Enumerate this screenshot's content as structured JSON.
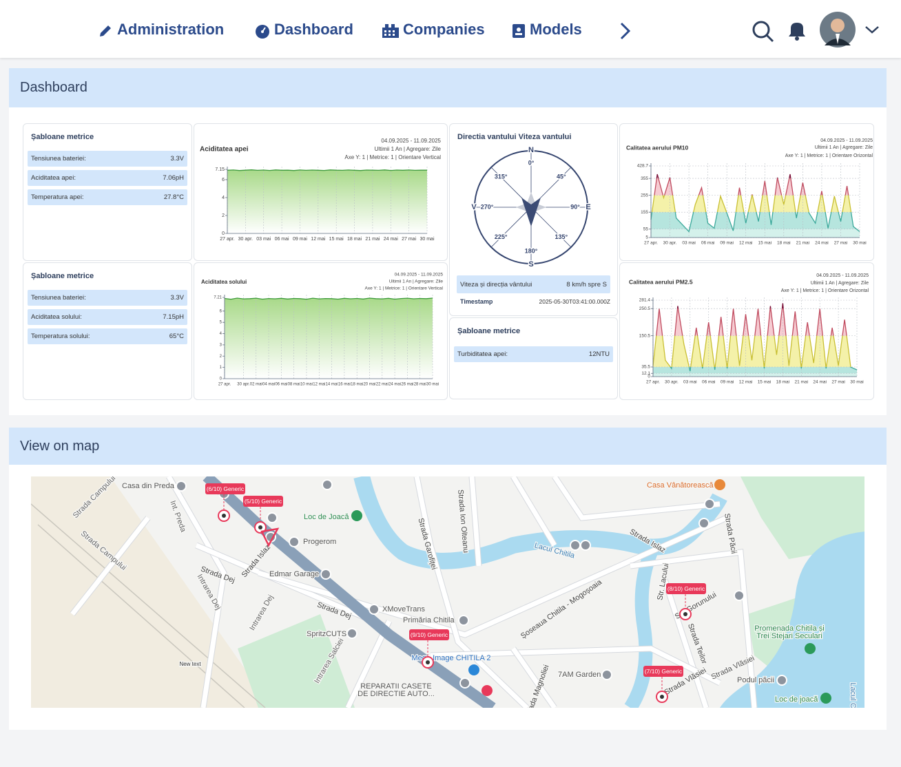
{
  "nav": {
    "items": [
      "Administration",
      "Dashboard",
      "Companies",
      "Models"
    ]
  },
  "sections": {
    "dashboard": "Dashboard",
    "map": "View on map"
  },
  "cards": [
    {
      "title": "Șabloane metrice",
      "rows": [
        {
          "label": "Tensiunea bateriei:",
          "value": "3.3V"
        },
        {
          "label": "Aciditatea apei:",
          "value": "7.06pH"
        },
        {
          "label": "Temperatura apei:",
          "value": "27.8°C"
        }
      ]
    },
    {
      "title": "Șabloane metrice",
      "rows": [
        {
          "label": "Tensiunea bateriei:",
          "value": "3.3V"
        },
        {
          "label": "Aciditatea solului:",
          "value": "7.15pH"
        },
        {
          "label": "Temperatura solului:",
          "value": "65°C"
        }
      ]
    },
    {
      "title": "Șabloane metrice",
      "rows": [
        {
          "label": "Turbiditatea apei:",
          "value": "12NTU"
        }
      ]
    }
  ],
  "wind": {
    "title": "Directia vantului Viteza vantului",
    "cardinals": [
      "N",
      "E",
      "S",
      "V"
    ],
    "degrees": [
      "0°",
      "45°",
      "90°",
      "135°",
      "180°",
      "225°",
      "270°",
      "315°"
    ],
    "rows": [
      {
        "label": "Viteza și direcția vântului",
        "value": "8 km/h spre S"
      },
      {
        "label": "Timestamp",
        "value": "2025-05-30T03:41:00.000Z"
      }
    ]
  },
  "chart_data": [
    {
      "type": "line",
      "title": "Aciditatea apei",
      "meta": [
        "04.09.2025 - 11.09.2025",
        "Ultimii 1 An | Agregare: Zile",
        "Axe Y: 1 | Metrice: 1 | Orientare Vertical"
      ],
      "categories": [
        "27 apr.",
        null,
        null,
        "30 apr.",
        null,
        null,
        "03 mai",
        null,
        null,
        "06 mai",
        null,
        null,
        "09 mai",
        null,
        null,
        "12 mai",
        null,
        null,
        "15 mai",
        null,
        null,
        "18 mai",
        null,
        null,
        "21 mai",
        null,
        null,
        "24 mai",
        null,
        null,
        "27 mai",
        null,
        null,
        "30 mai"
      ],
      "series": [
        {
          "name": "Aciditatea apei",
          "color": "#3c9a3a",
          "values": [
            7.05,
            7.08,
            7.02,
            7.06,
            7.1,
            7.04,
            7.07,
            7.03,
            7.09,
            7.05,
            7.06,
            7.02,
            7.08,
            7.04,
            7.07,
            7.05,
            7.03,
            7.09,
            7.06,
            7.04,
            7.08,
            7.05,
            7.02,
            7.07,
            7.06,
            7.04,
            7.09,
            7.03,
            7.07,
            7.05,
            7.08,
            7.04,
            7.06,
            7.06
          ]
        }
      ],
      "ylim": [
        0,
        7.15
      ],
      "yticks": [
        0,
        2,
        4,
        6,
        7.15
      ],
      "grid": true
    },
    {
      "type": "line",
      "title": "Aciditatea solului",
      "meta": [
        "04.09.2025 - 11.09.2025",
        "Ultimii 1 An | Agregare: Zile",
        "Axe Y: 1 | Metrice: 1 | Orientare Vertical"
      ],
      "categories": [
        "27 apr.",
        null,
        null,
        "30 apr.",
        null,
        "02 mai",
        null,
        "04 mai",
        null,
        "06 mai",
        null,
        "08 mai",
        null,
        "10 mai",
        null,
        "12 mai",
        null,
        "14 mai",
        null,
        "16 mai",
        null,
        "18 mai",
        null,
        "20 mai",
        null,
        "22 mai",
        null,
        "24 mai",
        null,
        "26 mai",
        null,
        "28 mai",
        null,
        "30 mai"
      ],
      "series": [
        {
          "name": "Aciditatea solului",
          "color": "#3c9a3a",
          "values": [
            7.12,
            7.05,
            7.15,
            7.08,
            7.1,
            7.14,
            7.06,
            7.11,
            7.09,
            7.13,
            7.07,
            7.12,
            7.1,
            7.05,
            7.14,
            7.08,
            7.11,
            7.1,
            7.06,
            7.13,
            7.09,
            7.12,
            7.07,
            7.15,
            7.1,
            7.08,
            7.13,
            7.06,
            7.11,
            7.14,
            7.09,
            7.12,
            7.1,
            7.15
          ]
        }
      ],
      "ylim": [
        0,
        7.21
      ],
      "yticks": [
        0,
        1,
        2,
        3,
        4,
        5,
        6,
        7.21
      ],
      "grid": true
    },
    {
      "type": "line",
      "title": "Calitatea aerului PM10",
      "meta": [
        "04.09.2025 - 11.09.2025",
        "Ultimii 1 An | Agregare: Zile",
        "Axe Y: 1 | Metrice: 1 | Orientare Orizontal"
      ],
      "categories": [
        "27 apr.",
        null,
        null,
        "30 apr.",
        null,
        null,
        "03 mai",
        null,
        null,
        "06 mai",
        null,
        null,
        "09 mai",
        null,
        null,
        "12 mai",
        null,
        null,
        "15 mai",
        null,
        null,
        "18 mai",
        null,
        null,
        "21 mai",
        null,
        null,
        "24 mai",
        null,
        null,
        "27 mai",
        null,
        null,
        "30 mai"
      ],
      "series": [
        {
          "name": "Calitatea aerului PM10",
          "color": "#8b1a3a",
          "values": [
            110,
            380,
            240,
            360,
            120,
            80,
            40,
            200,
            300,
            90,
            60,
            250,
            150,
            45,
            300,
            90,
            260,
            100,
            340,
            80,
            360,
            200,
            380,
            120,
            330,
            150,
            90,
            280,
            60,
            250,
            100,
            310,
            70,
            40
          ]
        }
      ],
      "ylim": [
        5,
        428.7
      ],
      "yticks": [
        5,
        55,
        155,
        255,
        355,
        428.7
      ],
      "grid": true,
      "bands": true
    },
    {
      "type": "line",
      "title": "Calitatea aerului PM2.5",
      "meta": [
        "04.09.2025 - 11.09.2025",
        "Ultimii 1 An | Agregare: Zile",
        "Axe Y: 1 | Metrice: 1 | Orientare Orizontal"
      ],
      "categories": [
        "27 apr.",
        null,
        null,
        "30 apr.",
        null,
        null,
        "03 mai",
        null,
        null,
        "06 mai",
        null,
        null,
        "09 mai",
        null,
        null,
        "12 mai",
        null,
        null,
        "15 mai",
        null,
        null,
        "18 mai",
        null,
        null,
        "21 mai",
        null,
        null,
        "24 mai",
        null,
        null,
        "27 mai",
        null,
        null,
        "30 mai"
      ],
      "series": [
        {
          "name": "Calitatea aerului PM2.5",
          "color": "#7a1038",
          "values": [
            40,
            250,
            60,
            30,
            260,
            120,
            20,
            180,
            30,
            200,
            25,
            220,
            30,
            250,
            40,
            230,
            60,
            250,
            30,
            260,
            80,
            270,
            40,
            240,
            30,
            200,
            50,
            250,
            30,
            180,
            40,
            210,
            35,
            25
          ]
        }
      ],
      "ylim": [
        0,
        281.4
      ],
      "yticks": [
        0,
        12.1,
        35.5,
        150.5,
        250.5,
        281.4
      ],
      "grid": true,
      "bands": true
    }
  ],
  "map": {
    "labels": [
      "Casa din Preda",
      "Strada Campului",
      "Int. Preda",
      "Strada Campului",
      "Loc de Joacă",
      "Progerom",
      "Strada Islaz",
      "Edmar Garage",
      "Strada Dej",
      "Intrarea Dej",
      "Intrarea Dej",
      "Strada Dej",
      "XMoveTrans",
      "Primăria Chitila",
      "SpritzCUTS",
      "Intrarea Salciei",
      "New text",
      "Strada Garofiței",
      "Strada Ion Olteanu",
      "Lacul Chitila",
      "Strada Islaz",
      "Casa Vânătorească",
      "Strada Păcii",
      "Șoseaua Chitila - Mogoșoaia",
      "Str. Lacului",
      "Str. Gorunului",
      "Strada Teilor",
      "Promenada Chitila și",
      "Trei Stejari Seculari",
      "Strada Vlăsiei",
      "Strada Vlăsiei",
      "Podul păcii",
      "Loc de joacă",
      "7AM Garden",
      "REPARATII CASETE",
      "DE DIRECTIE AUTO...",
      "Mega Image CHITILA 2",
      "Strada Magnoliei",
      "Lacul C"
    ],
    "markers": [
      "(6/10) Generic",
      "(5/10) Generic",
      "(9/10) Generic",
      "(8/10) Generic",
      "(7/10) Generic"
    ]
  }
}
